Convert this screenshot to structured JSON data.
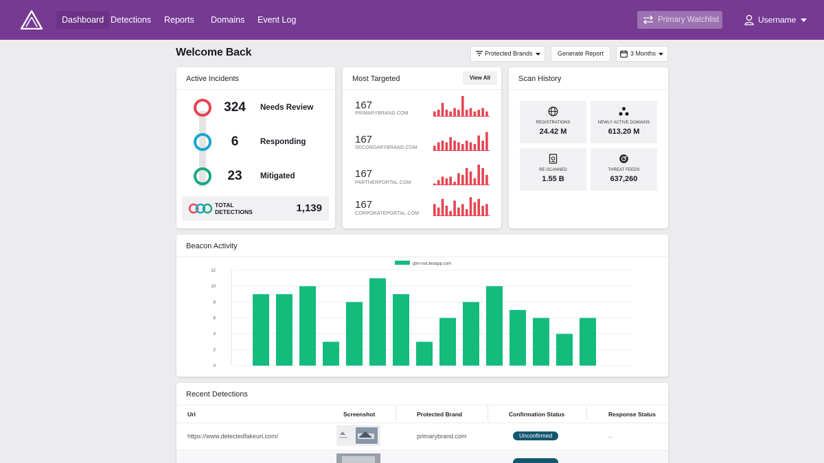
{
  "nav": {
    "items": [
      "Dashboard",
      "Detections",
      "Reports",
      "Domains",
      "Event Log"
    ],
    "watchlist": "Primary Watchlist",
    "username": "Username"
  },
  "header": {
    "welcome": "Welcome Back",
    "filter_label": "Protected Brands",
    "generate_label": "Generate Report",
    "range_label": "3 Months"
  },
  "incidents": {
    "title": "Active Incidents",
    "rows": [
      {
        "count": "324",
        "label": "Needs Review",
        "color": "#e64451"
      },
      {
        "count": "6",
        "label": "Responding",
        "color": "#18a6cf"
      },
      {
        "count": "23",
        "label": "Mitigated",
        "color": "#1aa884"
      }
    ],
    "total_label": "TOTAL DETECTIONS",
    "total_value": "1,139"
  },
  "targeted": {
    "title": "Most Targeted",
    "view_all": "View All",
    "items": [
      {
        "count": "167",
        "domain": "PRIMARYBRAND.COM",
        "bars": [
          3,
          4,
          8,
          4,
          3,
          5,
          4,
          12,
          4,
          5,
          3,
          4,
          5,
          3
        ]
      },
      {
        "count": "167",
        "domain": "SECONDARYBRAND.COM",
        "bars": [
          3,
          5,
          6,
          5,
          8,
          6,
          5,
          4,
          6,
          5,
          4,
          9,
          6,
          11
        ]
      },
      {
        "count": "167",
        "domain": "PARTNERPORTAL.COM",
        "bars": [
          1,
          3,
          5,
          4,
          5,
          2,
          7,
          6,
          10,
          8,
          4,
          12,
          10,
          6
        ]
      },
      {
        "count": "167",
        "domain": "CORPORATEPORTAL.COM",
        "bars": [
          7,
          5,
          10,
          6,
          3,
          9,
          5,
          7,
          4,
          11,
          8,
          10,
          6,
          7
        ]
      }
    ],
    "bar_color": "#e64451"
  },
  "scan": {
    "title": "Scan History",
    "stats": [
      {
        "label": "REGISTRATIONS",
        "value": "24.42 M",
        "icon": "globe-icon"
      },
      {
        "label": "NEWLY ACTIVE DOMAINS",
        "value": "613.20 M",
        "icon": "network-icon"
      },
      {
        "label": "RE-SCANNED",
        "value": "1.55 B",
        "icon": "document-icon"
      },
      {
        "label": "THREAT FEEDS",
        "value": "637,260",
        "icon": "radar-icon"
      }
    ]
  },
  "beacon": {
    "title": "Beacon Activity"
  },
  "chart_data": {
    "type": "bar",
    "title": "",
    "legend": "gtm-mst.testapp.com",
    "series": [
      {
        "name": "gtm-mst.testapp.com",
        "values": [
          9,
          9,
          10,
          3,
          8,
          11,
          9,
          3,
          6,
          8,
          10,
          7,
          6,
          4,
          6
        ]
      }
    ],
    "y_ticks": [
      0,
      2,
      4,
      6,
      8,
      10,
      12
    ],
    "ylim": [
      0,
      12
    ],
    "xlabel": "",
    "ylabel": "",
    "color": "#14bb7c"
  },
  "recent": {
    "title": "Recent Detections",
    "columns": [
      "Url",
      "Screenshot",
      "Protected Brand",
      "Confirmation Status",
      "Response Status"
    ],
    "rows": [
      {
        "url": "https://www.detectedfakeurl.com/",
        "brand": "primarybrand.com",
        "status": "Unconfirmed",
        "response": "--"
      }
    ]
  }
}
